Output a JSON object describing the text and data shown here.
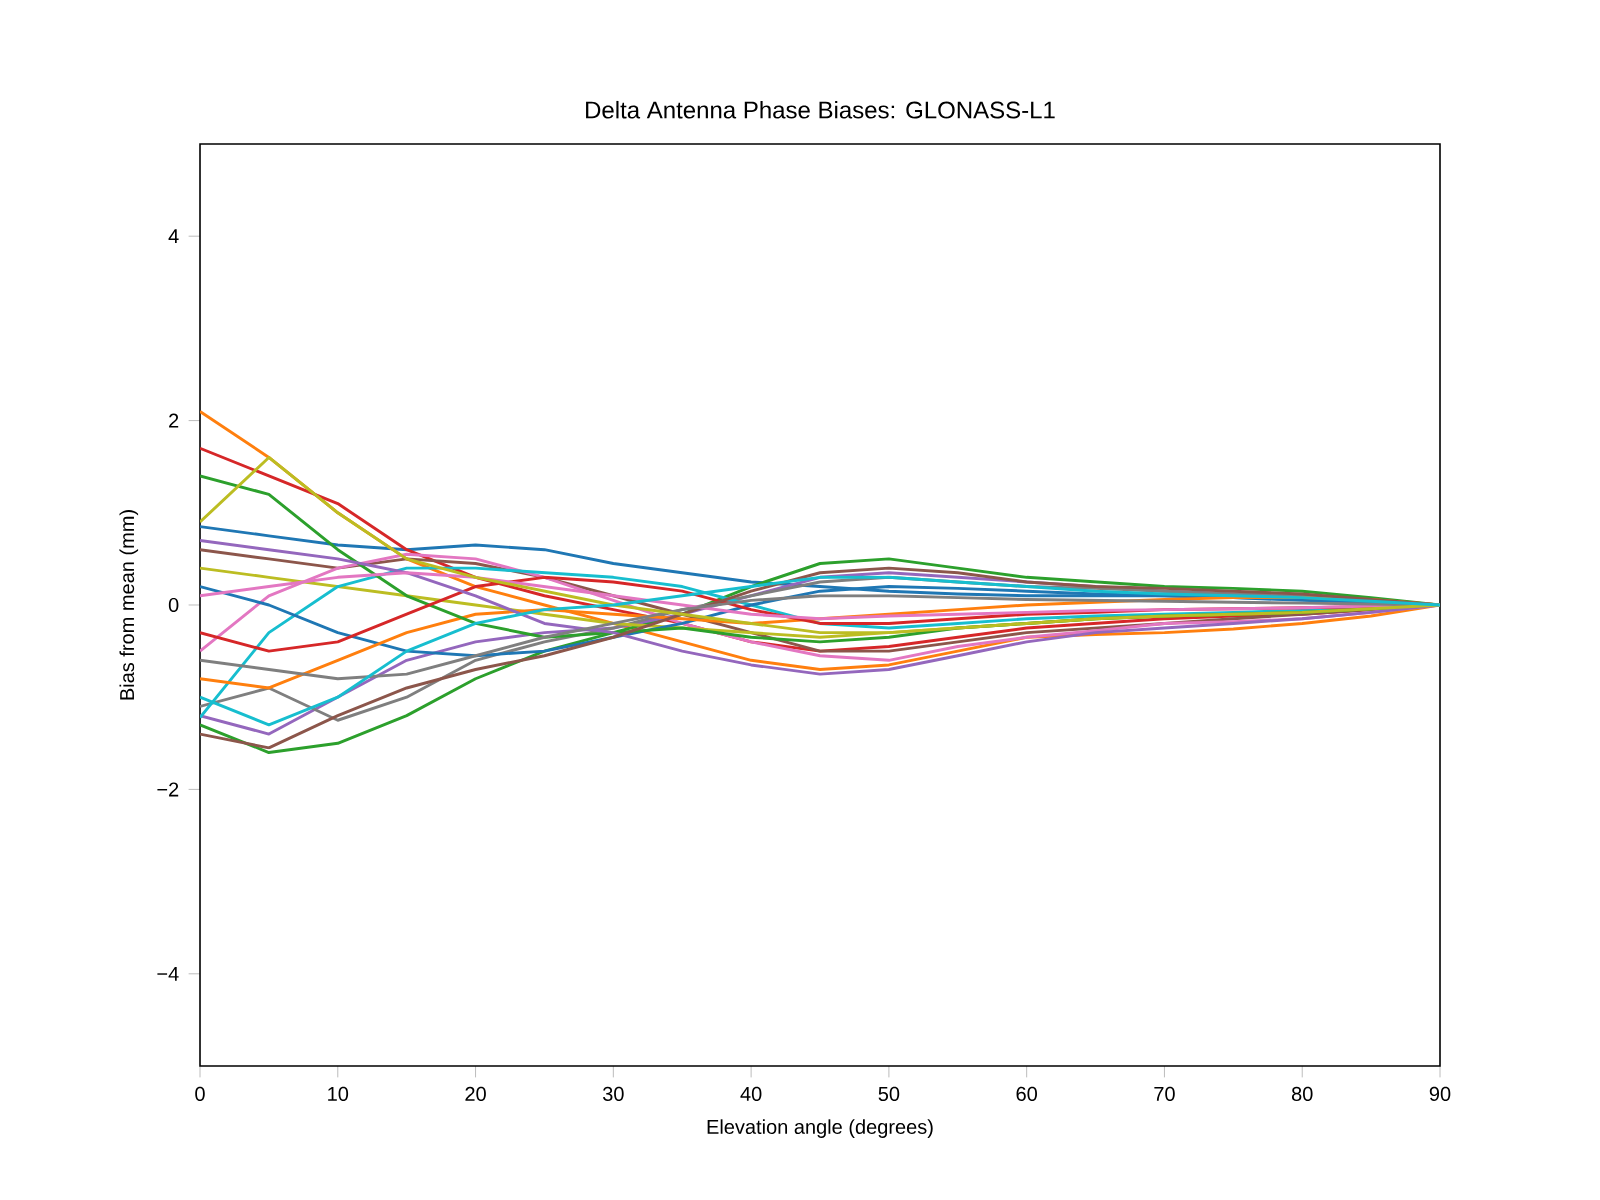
{
  "chart_data": {
    "type": "line",
    "title": "Delta Antenna Phase Biases: GLONASS-L1",
    "xlabel": "Elevation angle (degrees)",
    "ylabel": "Bias from mean (mm)",
    "x": [
      0,
      5,
      10,
      15,
      20,
      25,
      30,
      35,
      40,
      45,
      50,
      55,
      60,
      65,
      70,
      75,
      80,
      85,
      90
    ],
    "xlim": [
      0,
      90
    ],
    "xticks": [
      0,
      10,
      20,
      30,
      40,
      50,
      60,
      70,
      80,
      90
    ],
    "ylim": [
      -5,
      5
    ],
    "yticks": [
      {
        "value": -4,
        "label": "−4"
      },
      {
        "value": -2,
        "label": "−2"
      },
      0,
      2,
      4
    ],
    "series": [
      {
        "color": "#1f77b4",
        "values": [
          0.85,
          0.75,
          0.65,
          0.6,
          0.65,
          0.6,
          0.45,
          0.35,
          0.25,
          0.2,
          0.15,
          0.12,
          0.1,
          0.1,
          0.1,
          0.08,
          0.05,
          0.03,
          0
        ]
      },
      {
        "color": "#ff7f0e",
        "values": [
          2.1,
          1.6,
          1.0,
          0.5,
          0.2,
          0.0,
          -0.2,
          -0.4,
          -0.6,
          -0.7,
          -0.65,
          -0.5,
          -0.35,
          -0.32,
          -0.3,
          -0.26,
          -0.2,
          -0.12,
          0
        ]
      },
      {
        "color": "#2ca02c",
        "values": [
          -1.3,
          -1.6,
          -1.5,
          -1.2,
          -0.8,
          -0.5,
          -0.3,
          -0.1,
          0.2,
          0.45,
          0.5,
          0.4,
          0.3,
          0.25,
          0.2,
          0.18,
          0.15,
          0.08,
          0
        ]
      },
      {
        "color": "#d62728",
        "values": [
          1.7,
          1.4,
          1.1,
          0.6,
          0.3,
          0.1,
          -0.05,
          -0.2,
          -0.4,
          -0.5,
          -0.45,
          -0.35,
          -0.25,
          -0.2,
          -0.15,
          -0.12,
          -0.1,
          -0.05,
          0
        ]
      },
      {
        "color": "#9467bd",
        "values": [
          -1.2,
          -1.4,
          -1.0,
          -0.6,
          -0.4,
          -0.3,
          -0.25,
          -0.1,
          0.1,
          0.3,
          0.35,
          0.3,
          0.25,
          0.2,
          0.15,
          0.12,
          0.1,
          0.05,
          0
        ]
      },
      {
        "color": "#8c564b",
        "values": [
          0.6,
          0.5,
          0.4,
          0.5,
          0.45,
          0.3,
          0.1,
          -0.1,
          -0.3,
          -0.5,
          -0.5,
          -0.4,
          -0.3,
          -0.25,
          -0.2,
          -0.15,
          -0.1,
          -0.05,
          0
        ]
      },
      {
        "color": "#e377c2",
        "values": [
          -0.5,
          0.1,
          0.4,
          0.55,
          0.5,
          0.3,
          0.05,
          -0.2,
          -0.4,
          -0.55,
          -0.6,
          -0.45,
          -0.35,
          -0.28,
          -0.2,
          -0.18,
          -0.15,
          -0.08,
          0
        ]
      },
      {
        "color": "#7f7f7f",
        "values": [
          -1.1,
          -0.9,
          -1.25,
          -1.0,
          -0.6,
          -0.4,
          -0.25,
          -0.05,
          0.1,
          0.25,
          0.3,
          0.25,
          0.2,
          0.18,
          0.15,
          0.12,
          0.1,
          0.05,
          0
        ]
      },
      {
        "color": "#bcbd22",
        "values": [
          0.4,
          0.3,
          0.2,
          0.1,
          0.0,
          -0.1,
          -0.2,
          -0.25,
          -0.3,
          -0.35,
          -0.3,
          -0.25,
          -0.2,
          -0.15,
          -0.12,
          -0.1,
          -0.08,
          -0.04,
          0
        ]
      },
      {
        "color": "#17becf",
        "values": [
          -1.22,
          -0.3,
          0.2,
          0.4,
          0.4,
          0.35,
          0.3,
          0.2,
          0.0,
          -0.2,
          -0.25,
          -0.2,
          -0.15,
          -0.12,
          -0.1,
          -0.08,
          -0.06,
          -0.03,
          0
        ]
      },
      {
        "color": "#1f77b4",
        "values": [
          0.2,
          0.0,
          -0.3,
          -0.5,
          -0.55,
          -0.5,
          -0.35,
          -0.2,
          0.0,
          0.15,
          0.2,
          0.18,
          0.15,
          0.12,
          0.1,
          0.08,
          0.06,
          0.03,
          0
        ]
      },
      {
        "color": "#ff7f0e",
        "values": [
          -0.8,
          -0.9,
          -0.6,
          -0.3,
          -0.1,
          -0.05,
          -0.1,
          -0.15,
          -0.2,
          -0.15,
          -0.1,
          -0.05,
          0.0,
          0.03,
          0.06,
          0.08,
          0.08,
          0.06,
          0
        ]
      },
      {
        "color": "#2ca02c",
        "values": [
          1.4,
          1.2,
          0.6,
          0.1,
          -0.2,
          -0.35,
          -0.3,
          -0.25,
          -0.35,
          -0.4,
          -0.35,
          -0.25,
          -0.2,
          -0.15,
          -0.12,
          -0.1,
          -0.08,
          -0.04,
          0
        ]
      },
      {
        "color": "#d62728",
        "values": [
          -0.3,
          -0.5,
          -0.4,
          -0.1,
          0.2,
          0.3,
          0.25,
          0.15,
          -0.05,
          -0.2,
          -0.2,
          -0.15,
          -0.1,
          -0.08,
          -0.05,
          -0.04,
          -0.03,
          -0.02,
          0
        ]
      },
      {
        "color": "#9467bd",
        "values": [
          0.7,
          0.6,
          0.5,
          0.35,
          0.1,
          -0.2,
          -0.3,
          -0.5,
          -0.65,
          -0.75,
          -0.7,
          -0.55,
          -0.4,
          -0.3,
          -0.25,
          -0.2,
          -0.15,
          -0.08,
          0
        ]
      },
      {
        "color": "#8c564b",
        "values": [
          -1.4,
          -1.55,
          -1.2,
          -0.9,
          -0.7,
          -0.55,
          -0.35,
          -0.1,
          0.15,
          0.35,
          0.4,
          0.35,
          0.25,
          0.2,
          0.18,
          0.15,
          0.12,
          0.06,
          0
        ]
      },
      {
        "color": "#e377c2",
        "values": [
          0.1,
          0.2,
          0.3,
          0.35,
          0.3,
          0.2,
          0.1,
          0.0,
          -0.1,
          -0.15,
          -0.12,
          -0.1,
          -0.08,
          -0.06,
          -0.05,
          -0.04,
          -0.03,
          -0.01,
          0
        ]
      },
      {
        "color": "#7f7f7f",
        "values": [
          -0.6,
          -0.7,
          -0.8,
          -0.75,
          -0.55,
          -0.35,
          -0.2,
          -0.05,
          0.05,
          0.1,
          0.1,
          0.08,
          0.06,
          0.05,
          0.04,
          0.03,
          0.02,
          0.01,
          0
        ]
      },
      {
        "color": "#bcbd22",
        "values": [
          0.9,
          1.6,
          1.0,
          0.5,
          0.3,
          0.15,
          0.0,
          -0.1,
          -0.2,
          -0.3,
          -0.3,
          -0.25,
          -0.2,
          -0.15,
          -0.12,
          -0.1,
          -0.08,
          -0.04,
          0
        ]
      },
      {
        "color": "#17becf",
        "values": [
          -1.0,
          -1.3,
          -1.0,
          -0.5,
          -0.2,
          -0.05,
          0.0,
          0.1,
          0.2,
          0.3,
          0.3,
          0.25,
          0.2,
          0.15,
          0.12,
          0.1,
          0.08,
          0.04,
          0
        ]
      }
    ]
  }
}
